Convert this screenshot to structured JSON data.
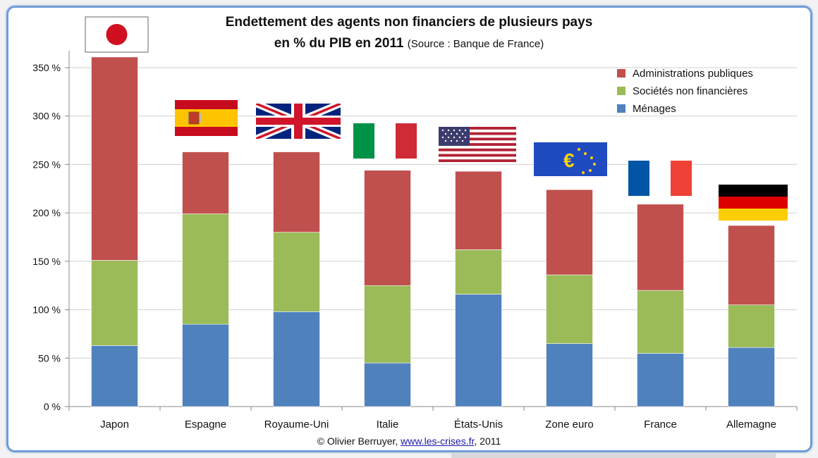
{
  "title_line1": "Endettement des agents non financiers de plusieurs pays",
  "title_line2_main": "en % du PIB en 2011",
  "title_line2_source": "(Source : Banque de France)",
  "credit": {
    "prefix": "© Olivier Berruyer, ",
    "link": "www.les-crises.fr",
    "suffix": ",  2011"
  },
  "colors": {
    "administrations": "#c0504d",
    "societes": "#9bbb59",
    "menages": "#4f81bd"
  },
  "flags": [
    "japan-flag-icon",
    "spain-flag-icon",
    "uk-flag-icon",
    "italy-flag-icon",
    "usa-flag-icon",
    "eu-flag-icon",
    "france-flag-icon",
    "germany-flag-icon"
  ],
  "chart_data": {
    "type": "bar",
    "stacked": true,
    "categories": [
      "Japon",
      "Espagne",
      "Royaume-Uni",
      "Italie",
      "États-Unis",
      "Zone euro",
      "France",
      "Allemagne"
    ],
    "series": [
      {
        "name": "Ménages",
        "color": "#4f81bd",
        "values": [
          63,
          85,
          98,
          45,
          116,
          65,
          55,
          61
        ]
      },
      {
        "name": "Sociétés non financières",
        "color": "#9bbb59",
        "values": [
          88,
          114,
          82,
          80,
          46,
          71,
          65,
          44
        ]
      },
      {
        "name": "Administrations publiques",
        "color": "#c0504d",
        "values": [
          210,
          64,
          83,
          119,
          81,
          88,
          89,
          82
        ]
      }
    ],
    "legend_order": [
      "Administrations publiques",
      "Sociétés non financières",
      "Ménages"
    ],
    "legend_position": "top-right",
    "yticks": [
      "0 %",
      "50 %",
      "100 %",
      "150 %",
      "200 %",
      "250 %",
      "300 %",
      "350 %"
    ],
    "ylim": [
      0,
      350
    ],
    "grid": true
  }
}
